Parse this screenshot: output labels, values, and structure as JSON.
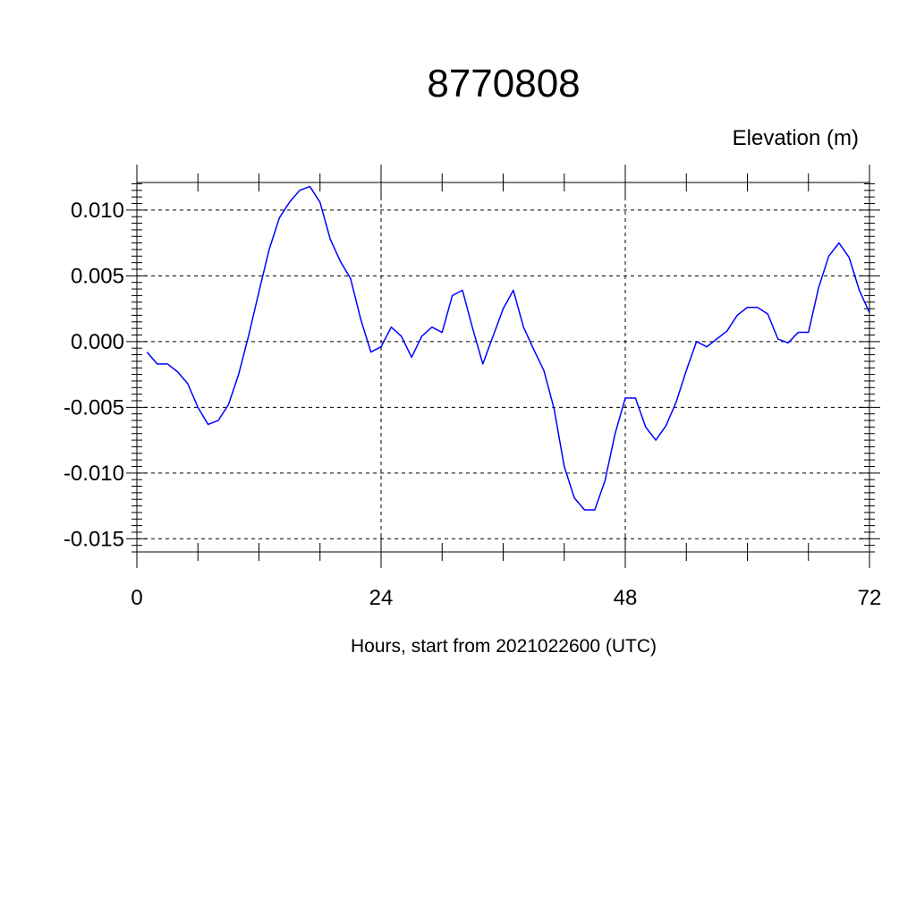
{
  "chart_data": {
    "type": "line",
    "title": "8770808",
    "ylabel": "Elevation (m)",
    "xlabel": "Hours, start from 2021022600 (UTC)",
    "xlim": [
      0,
      72
    ],
    "ylim": [
      -0.016,
      0.0121
    ],
    "x_ticks": [
      0,
      24,
      48,
      72
    ],
    "x_tick_labels": [
      "0",
      "24",
      "48",
      "72"
    ],
    "y_ticks": [
      0.01,
      0.005,
      0.0,
      -0.005,
      -0.01,
      -0.015
    ],
    "y_tick_labels": [
      "0.010",
      "0.005",
      "0.000",
      "-0.005",
      "-0.010",
      "-0.015"
    ],
    "grid": true,
    "series": [
      {
        "color": "#0000ff",
        "x": [
          1,
          2,
          3,
          4,
          5,
          6,
          7,
          8,
          9,
          10,
          11,
          12,
          13,
          14,
          15,
          16,
          17,
          18,
          19,
          20,
          21,
          22,
          23,
          24,
          25,
          26,
          27,
          28,
          29,
          30,
          31,
          32,
          33,
          34,
          35,
          36,
          37,
          38,
          39,
          40,
          41,
          42,
          43,
          44,
          45,
          46,
          47,
          48,
          49,
          50,
          51,
          52,
          53,
          54,
          55,
          56,
          57,
          58,
          59,
          60,
          61,
          62,
          63,
          64,
          65,
          66,
          67,
          68,
          69,
          70,
          71,
          72
        ],
        "y": [
          -0.0008,
          -0.0017,
          -0.0017,
          -0.0023,
          -0.0032,
          -0.005,
          -0.0063,
          -0.006,
          -0.0048,
          -0.0025,
          0.0005,
          0.0038,
          0.007,
          0.0094,
          0.0106,
          0.0115,
          0.0118,
          0.0106,
          0.0078,
          0.0061,
          0.0048,
          0.0017,
          -0.0008,
          -0.0004,
          0.0011,
          0.0004,
          -0.0012,
          0.0004,
          0.0011,
          0.0007,
          0.0035,
          0.0039,
          0.001,
          -0.0017,
          0.0004,
          0.0025,
          0.0039,
          0.0011,
          -0.0006,
          -0.0022,
          -0.0051,
          -0.0095,
          -0.0119,
          -0.0128,
          -0.0128,
          -0.0106,
          -0.007,
          -0.0043,
          -0.0043,
          -0.0065,
          -0.0075,
          -0.0064,
          -0.0046,
          -0.0022,
          0.0,
          -0.0004,
          0.0002,
          0.0008,
          0.002,
          0.0026,
          0.0026,
          0.0021,
          0.0002,
          -0.0001,
          0.0007,
          0.0007,
          0.0041,
          0.0065,
          0.0075,
          0.0064,
          0.0039,
          0.0022
        ]
      }
    ]
  }
}
